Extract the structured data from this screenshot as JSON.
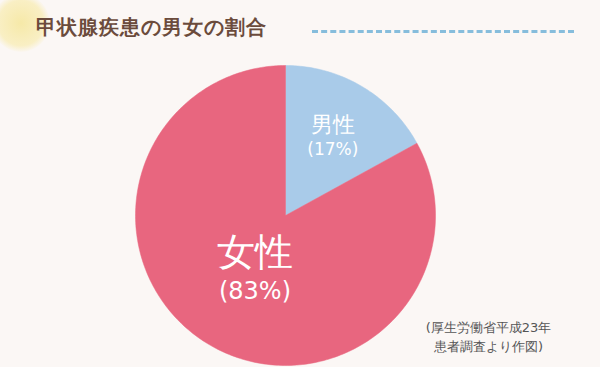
{
  "chart_data": {
    "type": "pie",
    "title": "甲状腺疾患の男女の割合",
    "categories": [
      "男性",
      "女性"
    ],
    "values": [
      17,
      83
    ],
    "value_labels": [
      "(17%)",
      "(83%)"
    ],
    "colors": [
      "#a9cbe9",
      "#e8667f"
    ],
    "data_labels": true,
    "annotation": "(厚生労働省平成23年\n患者調査より作図)"
  }
}
